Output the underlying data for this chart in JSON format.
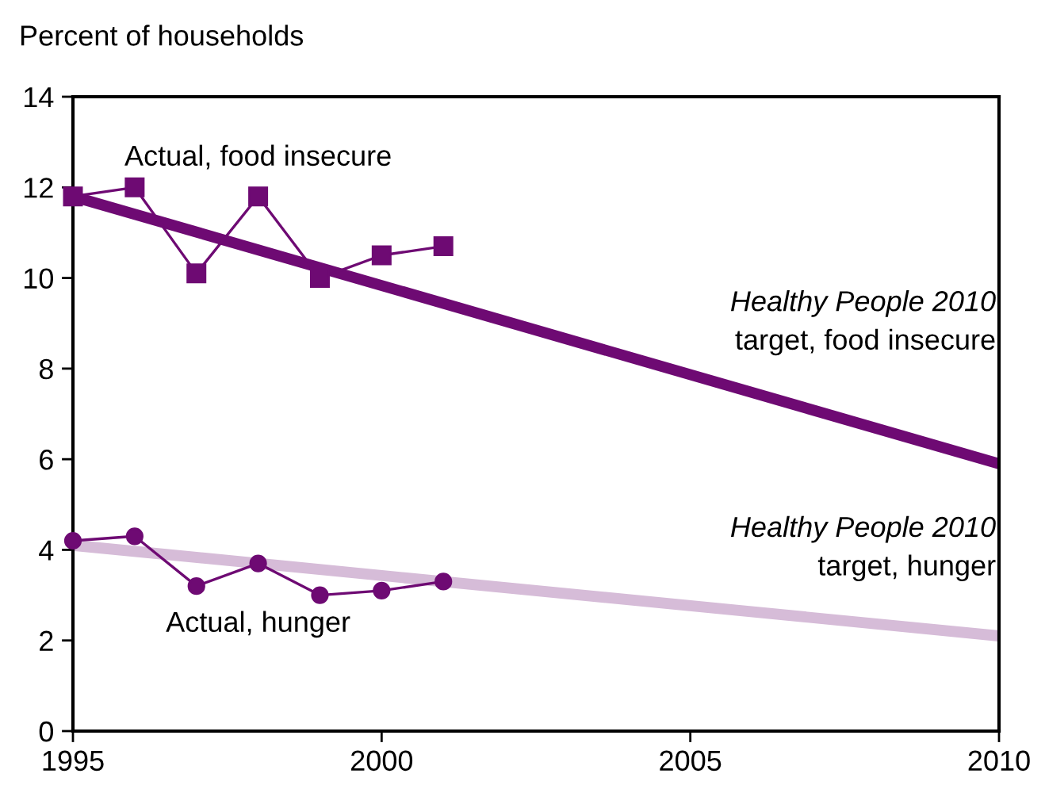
{
  "chart_data": {
    "type": "line",
    "ylabel": "Percent of households",
    "xlim": [
      1995,
      2010
    ],
    "xticks": [
      1995,
      2000,
      2005,
      2010
    ],
    "ylim": [
      0,
      14
    ],
    "yticks": [
      0,
      2,
      4,
      6,
      8,
      10,
      12,
      14
    ],
    "grid": false,
    "legend": false,
    "series": [
      {
        "name": "Actual, food insecure",
        "color": "#6e0a73",
        "x": [
          1995,
          1996,
          1997,
          1998,
          1999,
          2000,
          2001
        ],
        "values": [
          11.8,
          12.0,
          10.1,
          11.8,
          10.0,
          10.5,
          10.7
        ],
        "marker": "square"
      },
      {
        "name": "Actual, hunger",
        "color": "#6e0a73",
        "x": [
          1995,
          1996,
          1997,
          1998,
          1999,
          2000,
          2001
        ],
        "values": [
          4.2,
          4.3,
          3.2,
          3.7,
          3.0,
          3.1,
          3.3
        ],
        "marker": "circle"
      },
      {
        "name": "Healthy People 2010\ntarget, food insecure",
        "color": "#6e0a73",
        "x": [
          1995,
          2010
        ],
        "values": [
          11.8,
          5.9
        ]
      },
      {
        "name": "Healthy People 2010\ntarget, hunger",
        "color": "#d6bcd8",
        "x": [
          1995,
          2010
        ],
        "values": [
          4.1,
          2.1
        ]
      }
    ]
  }
}
